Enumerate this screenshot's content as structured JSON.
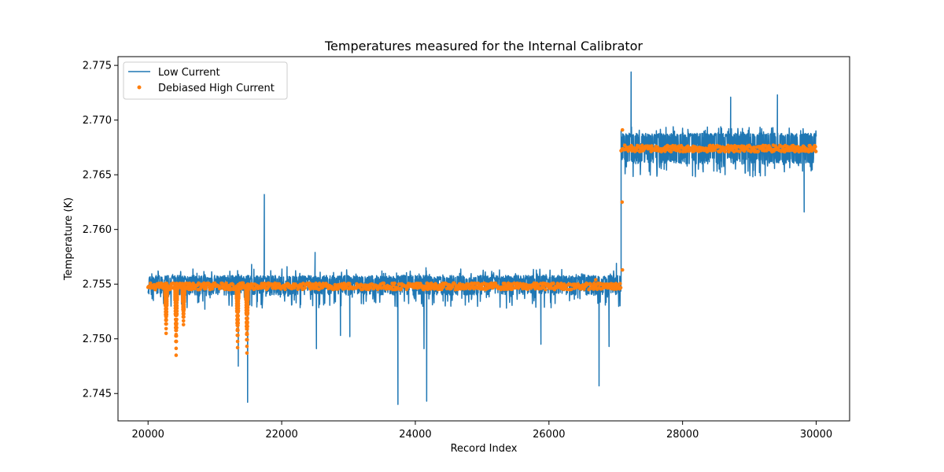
{
  "chart_data": {
    "type": "line",
    "title": "Temperatures measured for the Internal Calibrator",
    "xlabel": "Record Index",
    "ylabel": "Temperature (K)",
    "xlim": [
      19550,
      30500
    ],
    "ylim": [
      2.7425,
      2.7758
    ],
    "x_ticks": [
      20000,
      22000,
      24000,
      26000,
      28000,
      30000
    ],
    "x_tick_labels": [
      "20000",
      "22000",
      "24000",
      "26000",
      "28000",
      "30000"
    ],
    "y_ticks": [
      2.745,
      2.75,
      2.755,
      2.76,
      2.765,
      2.77,
      2.775
    ],
    "y_tick_labels": [
      "2.745",
      "2.750",
      "2.755",
      "2.760",
      "2.765",
      "2.770",
      "2.775"
    ],
    "grid": false,
    "legend_position": "top-left",
    "series": [
      {
        "name": "Low Current",
        "style": "line",
        "color": "#1f77b4",
        "segments": [
          {
            "x_start": 20000,
            "x_end": 27080,
            "center": 2.755,
            "band_low": 2.754,
            "band_high": 2.7558
          },
          {
            "x_start": 27080,
            "x_end": 30000,
            "center": 2.7675,
            "band_low": 2.766,
            "band_high": 2.7688
          }
        ],
        "spikes": [
          {
            "x": 20080,
            "y": 2.7535
          },
          {
            "x": 20150,
            "y": 2.7562
          },
          {
            "x": 20410,
            "y": 2.7535
          },
          {
            "x": 20500,
            "y": 2.7532
          },
          {
            "x": 20850,
            "y": 2.7527
          },
          {
            "x": 21350,
            "y": 2.7475
          },
          {
            "x": 21490,
            "y": 2.7442
          },
          {
            "x": 21550,
            "y": 2.7568
          },
          {
            "x": 21740,
            "y": 2.7632
          },
          {
            "x": 22080,
            "y": 2.7566
          },
          {
            "x": 22500,
            "y": 2.7579
          },
          {
            "x": 22520,
            "y": 2.7491
          },
          {
            "x": 22880,
            "y": 2.7503
          },
          {
            "x": 23020,
            "y": 2.7502
          },
          {
            "x": 23500,
            "y": 2.7562
          },
          {
            "x": 23740,
            "y": 2.744
          },
          {
            "x": 24130,
            "y": 2.7491
          },
          {
            "x": 24170,
            "y": 2.7443
          },
          {
            "x": 24160,
            "y": 2.7565
          },
          {
            "x": 25260,
            "y": 2.7563
          },
          {
            "x": 25880,
            "y": 2.7495
          },
          {
            "x": 26750,
            "y": 2.7457
          },
          {
            "x": 26900,
            "y": 2.7493
          },
          {
            "x": 27010,
            "y": 2.7569
          },
          {
            "x": 27230,
            "y": 2.7744
          },
          {
            "x": 27500,
            "y": 2.7653
          },
          {
            "x": 28150,
            "y": 2.7649
          },
          {
            "x": 28720,
            "y": 2.7721
          },
          {
            "x": 29420,
            "y": 2.7723
          },
          {
            "x": 29820,
            "y": 2.7616
          },
          {
            "x": 29150,
            "y": 2.7652
          }
        ]
      },
      {
        "name": "Debiased High Current",
        "style": "scatter",
        "color": "#ff7f0e",
        "segments": [
          {
            "x_start": 20000,
            "x_end": 27080,
            "center": 2.7548,
            "spread": 0.0003
          },
          {
            "x_start": 27080,
            "x_end": 30000,
            "center": 2.7674,
            "spread": 0.0003
          }
        ],
        "dips": [
          {
            "x": 20270,
            "min": 2.7505
          },
          {
            "x": 20420,
            "min": 2.7485
          },
          {
            "x": 20530,
            "min": 2.7513
          },
          {
            "x": 21340,
            "min": 2.7492
          },
          {
            "x": 21480,
            "min": 2.7487
          }
        ],
        "outliers": [
          {
            "x": 27100,
            "y": 2.7691
          },
          {
            "x": 27095,
            "y": 2.7625
          },
          {
            "x": 27100,
            "y": 2.7563
          },
          {
            "x": 26700,
            "y": 2.7554
          }
        ]
      }
    ]
  }
}
